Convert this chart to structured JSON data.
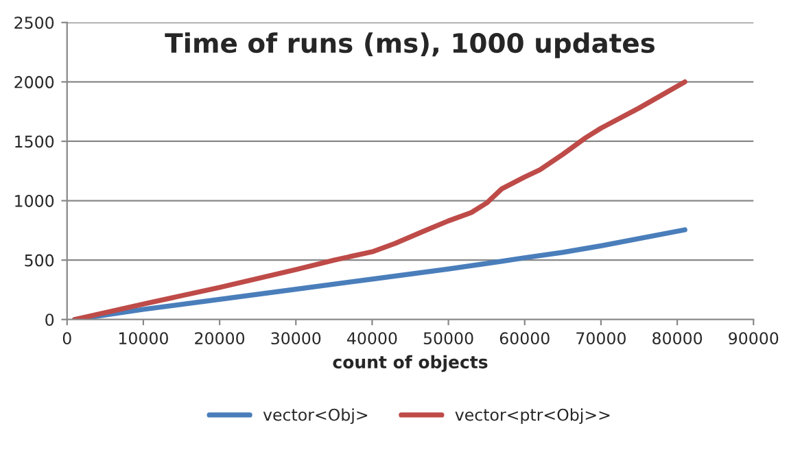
{
  "chart_data": {
    "type": "line",
    "title": "Time of runs (ms), 1000 updates",
    "xlabel": "count of objects",
    "xlim": [
      0,
      90000
    ],
    "xticks": [
      0,
      10000,
      20000,
      30000,
      40000,
      50000,
      60000,
      70000,
      80000,
      90000
    ],
    "ylim": [
      0,
      2500
    ],
    "yticks": [
      0,
      500,
      1000,
      1500,
      2000,
      2500
    ],
    "grid": "y",
    "legend": "bottom",
    "marker": "none",
    "line_style": "solid",
    "series": [
      {
        "name": "vector<Obj>",
        "color": "#4a7ebb",
        "x": [
          1000,
          10000,
          20000,
          30000,
          40000,
          50000,
          57000,
          60000,
          65000,
          70000,
          81000
        ],
        "values": [
          0,
          85,
          170,
          255,
          340,
          425,
          490,
          520,
          565,
          620,
          755
        ]
      },
      {
        "name": "vector<ptr<Obj>>",
        "color": "#be4b48",
        "x": [
          1000,
          10000,
          20000,
          30000,
          35000,
          40000,
          43000,
          47000,
          50000,
          53000,
          55000,
          57000,
          60000,
          62000,
          65000,
          68000,
          70000,
          75000,
          81000
        ],
        "values": [
          0,
          130,
          270,
          420,
          500,
          570,
          640,
          750,
          830,
          900,
          980,
          1100,
          1200,
          1260,
          1390,
          1530,
          1610,
          1780,
          2000
        ]
      }
    ]
  }
}
